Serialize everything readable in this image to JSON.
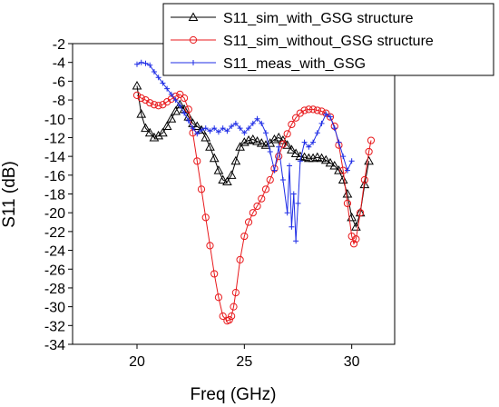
{
  "chart_data": {
    "type": "line",
    "title": "",
    "xlabel": "Freq (GHz)",
    "ylabel": "S11 (dB)",
    "xlim": [
      17,
      32
    ],
    "ylim": [
      -34,
      -2
    ],
    "xticks": [
      20,
      25,
      30
    ],
    "yticks": [
      -2,
      -4,
      -6,
      -8,
      -10,
      -12,
      -14,
      -16,
      -18,
      -20,
      -22,
      -24,
      -26,
      -28,
      -30,
      -32,
      -34
    ],
    "grid": false,
    "legend_position": "top-right",
    "series": [
      {
        "name": "S11_sim_with_GSG structure",
        "color": "#000000",
        "marker": "triangle",
        "x": [
          20.0,
          20.2,
          20.4,
          20.6,
          20.8,
          21.0,
          21.2,
          21.4,
          21.6,
          21.8,
          22.0,
          22.2,
          22.4,
          22.6,
          22.8,
          23.0,
          23.2,
          23.4,
          23.6,
          23.8,
          24.0,
          24.2,
          24.4,
          24.6,
          24.8,
          25.0,
          25.2,
          25.4,
          25.6,
          25.8,
          26.0,
          26.2,
          26.4,
          26.6,
          26.8,
          27.0,
          27.2,
          27.4,
          27.6,
          27.8,
          28.0,
          28.2,
          28.4,
          28.6,
          28.8,
          29.0,
          29.2,
          29.4,
          29.6,
          29.8,
          30.0,
          30.2,
          30.4,
          30.6,
          30.8
        ],
        "y": [
          -6.5,
          -9.5,
          -11.0,
          -11.5,
          -12.0,
          -11.8,
          -11.5,
          -10.8,
          -10.0,
          -9.2,
          -8.5,
          -9.0,
          -9.8,
          -10.5,
          -10.8,
          -11.2,
          -12.0,
          -13.0,
          -14.2,
          -15.5,
          -16.5,
          -16.7,
          -16.0,
          -14.5,
          -13.0,
          -12.5,
          -12.3,
          -12.2,
          -12.4,
          -12.6,
          -12.8,
          -12.6,
          -12.2,
          -12.0,
          -12.3,
          -12.8,
          -13.3,
          -13.7,
          -14.0,
          -14.1,
          -14.2,
          -14.2,
          -14.1,
          -14.2,
          -14.4,
          -14.7,
          -15.0,
          -15.5,
          -16.5,
          -18.0,
          -20.5,
          -21.5,
          -20.0,
          -17.0,
          -14.5
        ]
      },
      {
        "name": "S11_sim_without_GSG structure",
        "color": "#e8191c",
        "marker": "circle",
        "x": [
          20.0,
          20.2,
          20.4,
          20.6,
          20.8,
          21.0,
          21.2,
          21.4,
          21.6,
          21.8,
          22.0,
          22.2,
          22.4,
          22.6,
          22.8,
          23.0,
          23.2,
          23.4,
          23.6,
          23.8,
          24.0,
          24.2,
          24.3,
          24.4,
          24.5,
          24.6,
          24.8,
          25.0,
          25.2,
          25.4,
          25.6,
          25.8,
          26.0,
          26.2,
          26.4,
          26.6,
          26.8,
          27.0,
          27.2,
          27.4,
          27.6,
          27.8,
          28.0,
          28.2,
          28.4,
          28.6,
          28.8,
          29.0,
          29.2,
          29.4,
          29.6,
          29.8,
          30.0,
          30.1,
          30.2,
          30.4,
          30.6,
          30.8,
          30.9
        ],
        "y": [
          -7.5,
          -7.8,
          -8.0,
          -8.3,
          -8.5,
          -8.6,
          -8.5,
          -8.2,
          -7.9,
          -7.6,
          -7.4,
          -7.8,
          -9.0,
          -11.5,
          -14.5,
          -17.5,
          -20.5,
          -23.5,
          -26.5,
          -29.0,
          -31.0,
          -31.5,
          -31.4,
          -31.0,
          -30.0,
          -28.5,
          -25.0,
          -22.5,
          -21.0,
          -20.0,
          -19.3,
          -18.5,
          -17.5,
          -16.5,
          -15.3,
          -14.0,
          -12.7,
          -11.6,
          -10.6,
          -9.9,
          -9.4,
          -9.1,
          -9.0,
          -9.0,
          -9.1,
          -9.2,
          -9.4,
          -9.8,
          -10.8,
          -12.8,
          -15.5,
          -19.0,
          -22.5,
          -23.3,
          -22.8,
          -20.0,
          -16.5,
          -13.5,
          -12.3
        ]
      },
      {
        "name": "S11_meas_with_GSG",
        "color": "#1f2de6",
        "marker": "plus",
        "x": [
          20.0,
          20.2,
          20.4,
          20.6,
          20.8,
          21.0,
          21.2,
          21.4,
          21.6,
          21.8,
          22.0,
          22.2,
          22.4,
          22.6,
          22.8,
          23.0,
          23.2,
          23.4,
          23.6,
          23.8,
          24.0,
          24.2,
          24.4,
          24.6,
          24.8,
          25.0,
          25.2,
          25.4,
          25.6,
          25.8,
          26.0,
          26.2,
          26.4,
          26.6,
          26.8,
          27.0,
          27.1,
          27.2,
          27.3,
          27.4,
          27.5,
          27.6,
          27.8,
          28.0,
          28.2,
          28.4,
          28.6,
          28.8,
          29.0,
          29.2,
          29.4,
          29.6,
          29.8,
          30.0
        ],
        "y": [
          -4.2,
          -4.0,
          -4.1,
          -4.3,
          -5.0,
          -5.6,
          -6.2,
          -6.8,
          -7.4,
          -8.0,
          -8.6,
          -9.4,
          -10.2,
          -11.0,
          -11.6,
          -11.2,
          -11.0,
          -11.3,
          -11.0,
          -11.4,
          -11.0,
          -11.3,
          -10.8,
          -10.5,
          -11.0,
          -11.5,
          -11.0,
          -10.5,
          -10.0,
          -10.5,
          -11.5,
          -13.5,
          -15.5,
          -13.0,
          -16.5,
          -20.0,
          -15.0,
          -21.5,
          -18.0,
          -23.0,
          -19.0,
          -14.5,
          -12.5,
          -13.0,
          -12.5,
          -11.5,
          -10.5,
          -9.5,
          -9.8,
          -11.0,
          -12.5,
          -14.0,
          -15.5,
          -14.5
        ]
      }
    ]
  }
}
